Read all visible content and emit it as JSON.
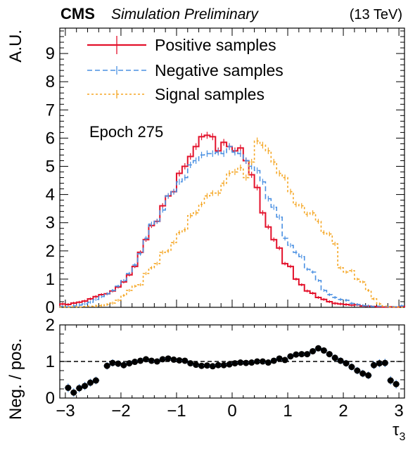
{
  "header": {
    "experiment": "CMS",
    "status": "Simulation Preliminary",
    "energy": "(13 TeV)"
  },
  "annotation": "Epoch 275",
  "chart_data": [
    {
      "type": "line",
      "drawstyle": "steps",
      "ylabel": "A.U.",
      "xlabel": "τ3",
      "xlim": [
        -3.1,
        3.1
      ],
      "ylim": [
        0,
        9.9
      ],
      "x_ticks": [
        -3,
        -2,
        -1,
        0,
        1,
        2,
        3
      ],
      "y_ticks": [
        0,
        1,
        2,
        3,
        4,
        5,
        6,
        7,
        8,
        9
      ],
      "bin_edges_start": -3.1,
      "bin_width": 0.1,
      "legend_position": "top-left",
      "series": [
        {
          "name": "Positive samples",
          "color": "#e3112b",
          "style": "solid",
          "values": [
            0.12,
            0.1,
            0.15,
            0.18,
            0.22,
            0.3,
            0.38,
            0.45,
            0.48,
            0.58,
            0.72,
            0.9,
            1.15,
            1.45,
            1.95,
            2.4,
            2.9,
            3.05,
            3.6,
            3.95,
            4.1,
            4.75,
            5.0,
            5.35,
            5.7,
            6.05,
            6.1,
            6.05,
            5.55,
            5.85,
            5.7,
            5.55,
            5.65,
            5.2,
            4.7,
            4.25,
            3.35,
            2.85,
            2.4,
            2.1,
            1.55,
            1.45,
            1.0,
            0.8,
            0.58,
            0.5,
            0.35,
            0.28,
            0.2,
            0.14,
            0.12,
            0.1,
            0.08,
            0.09,
            0.05,
            0.04,
            0.03,
            0.02,
            0.01,
            0.02,
            0.01,
            0.03
          ]
        },
        {
          "name": "Negative samples",
          "color": "#4a90e2",
          "style": "dashed",
          "values": [
            0.04,
            0.02,
            0.05,
            0.08,
            0.12,
            0.18,
            0.28,
            0.38,
            0.48,
            0.6,
            0.75,
            0.95,
            1.2,
            1.5,
            1.9,
            2.45,
            2.95,
            3.05,
            3.45,
            3.95,
            4.1,
            4.45,
            4.6,
            5.05,
            5.2,
            5.4,
            5.45,
            5.45,
            5.5,
            5.45,
            5.7,
            5.5,
            5.45,
            5.2,
            5.0,
            4.85,
            4.45,
            3.85,
            3.55,
            3.2,
            2.45,
            2.2,
            1.95,
            1.8,
            1.35,
            1.25,
            0.95,
            0.6,
            0.45,
            0.35,
            0.28,
            0.25,
            0.14,
            0.1,
            0.06,
            0.05,
            0.03,
            0.04,
            0.03,
            0.02,
            0.02,
            0.05
          ]
        },
        {
          "name": "Signal samples",
          "color": "#f5a623",
          "style": "dotted",
          "values": [
            0.01,
            0.0,
            0.02,
            0.01,
            0.03,
            0.04,
            0.05,
            0.06,
            0.1,
            0.15,
            0.25,
            0.42,
            0.6,
            0.75,
            0.8,
            1.2,
            1.4,
            1.55,
            1.95,
            2.0,
            2.3,
            2.65,
            2.75,
            3.25,
            3.35,
            3.65,
            3.95,
            4.05,
            4.05,
            4.4,
            4.75,
            4.8,
            4.95,
            4.6,
            5.15,
            5.9,
            5.75,
            5.55,
            5.15,
            4.75,
            4.6,
            4.1,
            3.65,
            3.6,
            3.3,
            3.35,
            3.05,
            2.65,
            2.6,
            2.25,
            1.4,
            1.25,
            1.3,
            1.0,
            0.9,
            0.6,
            0.3,
            0.12,
            0.04,
            0.01,
            0.01,
            0.0
          ]
        }
      ]
    },
    {
      "type": "scatter",
      "ylabel": "Neg. / pos.",
      "xlim": [
        -3.1,
        3.1
      ],
      "ylim": [
        0,
        2
      ],
      "y_ticks": [
        0,
        1,
        2
      ],
      "reference_line_y": 1,
      "points": [
        {
          "x": -2.95,
          "y": 0.28
        },
        {
          "x": -2.85,
          "y": 0.15
        },
        {
          "x": -2.75,
          "y": 0.27
        },
        {
          "x": -2.65,
          "y": 0.33
        },
        {
          "x": -2.55,
          "y": 0.42
        },
        {
          "x": -2.45,
          "y": 0.48
        },
        {
          "x": -2.25,
          "y": 0.88
        },
        {
          "x": -2.15,
          "y": 0.96
        },
        {
          "x": -2.05,
          "y": 0.94
        },
        {
          "x": -1.95,
          "y": 0.9
        },
        {
          "x": -1.85,
          "y": 0.95
        },
        {
          "x": -1.75,
          "y": 0.99
        },
        {
          "x": -1.65,
          "y": 1.02
        },
        {
          "x": -1.55,
          "y": 1.06
        },
        {
          "x": -1.45,
          "y": 1.02
        },
        {
          "x": -1.35,
          "y": 1.0
        },
        {
          "x": -1.25,
          "y": 1.06
        },
        {
          "x": -1.15,
          "y": 1.08
        },
        {
          "x": -1.05,
          "y": 1.05
        },
        {
          "x": -0.95,
          "y": 1.03
        },
        {
          "x": -0.85,
          "y": 1.02
        },
        {
          "x": -0.75,
          "y": 0.95
        },
        {
          "x": -0.65,
          "y": 0.91
        },
        {
          "x": -0.55,
          "y": 0.88
        },
        {
          "x": -0.45,
          "y": 0.89
        },
        {
          "x": -0.35,
          "y": 0.87
        },
        {
          "x": -0.25,
          "y": 0.9
        },
        {
          "x": -0.15,
          "y": 0.9
        },
        {
          "x": -0.05,
          "y": 0.92
        },
        {
          "x": 0.05,
          "y": 0.95
        },
        {
          "x": 0.15,
          "y": 0.97
        },
        {
          "x": 0.25,
          "y": 0.96
        },
        {
          "x": 0.35,
          "y": 0.97
        },
        {
          "x": 0.45,
          "y": 1.0
        },
        {
          "x": 0.55,
          "y": 1.0
        },
        {
          "x": 0.65,
          "y": 0.97
        },
        {
          "x": 0.75,
          "y": 1.02
        },
        {
          "x": 0.85,
          "y": 1.08
        },
        {
          "x": 0.95,
          "y": 1.04
        },
        {
          "x": 1.05,
          "y": 1.14
        },
        {
          "x": 1.15,
          "y": 1.19
        },
        {
          "x": 1.25,
          "y": 1.2
        },
        {
          "x": 1.35,
          "y": 1.2
        },
        {
          "x": 1.45,
          "y": 1.28
        },
        {
          "x": 1.55,
          "y": 1.36
        },
        {
          "x": 1.65,
          "y": 1.3
        },
        {
          "x": 1.75,
          "y": 1.2
        },
        {
          "x": 1.85,
          "y": 1.1
        },
        {
          "x": 1.95,
          "y": 1.02
        },
        {
          "x": 2.05,
          "y": 0.95
        },
        {
          "x": 2.15,
          "y": 0.85
        },
        {
          "x": 2.25,
          "y": 0.75
        },
        {
          "x": 2.35,
          "y": 0.67
        },
        {
          "x": 2.45,
          "y": 0.62
        },
        {
          "x": 2.55,
          "y": 0.9
        },
        {
          "x": 2.65,
          "y": 0.95
        },
        {
          "x": 2.75,
          "y": 0.96
        },
        {
          "x": 2.85,
          "y": 0.48
        },
        {
          "x": 2.95,
          "y": 0.38
        }
      ]
    }
  ]
}
